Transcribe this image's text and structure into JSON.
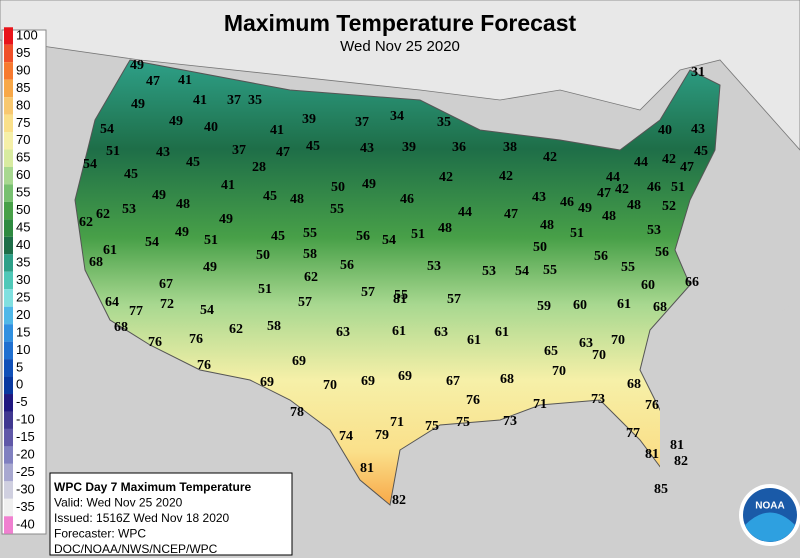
{
  "title": "Maximum Temperature Forecast",
  "subtitle": "Wed Nov 25 2020",
  "legend": [
    {
      "value": 100,
      "color": "#e8141a"
    },
    {
      "value": 95,
      "color": "#f0502a"
    },
    {
      "value": 90,
      "color": "#f77a30"
    },
    {
      "value": 85,
      "color": "#f8a848"
    },
    {
      "value": 80,
      "color": "#f8c870"
    },
    {
      "value": 75,
      "color": "#fae08a"
    },
    {
      "value": 70,
      "color": "#f6f0a8"
    },
    {
      "value": 65,
      "color": "#d8eba0"
    },
    {
      "value": 60,
      "color": "#a8d890"
    },
    {
      "value": 55,
      "color": "#78c070"
    },
    {
      "value": 50,
      "color": "#48a048"
    },
    {
      "value": 45,
      "color": "#2e8a40"
    },
    {
      "value": 40,
      "color": "#1e6e48"
    },
    {
      "value": 35,
      "color": "#2ea088"
    },
    {
      "value": 30,
      "color": "#50c8b8"
    },
    {
      "value": 25,
      "color": "#80e0e0"
    },
    {
      "value": 20,
      "color": "#50b8e8"
    },
    {
      "value": 15,
      "color": "#3090e0"
    },
    {
      "value": 10,
      "color": "#2070d0"
    },
    {
      "value": 5,
      "color": "#1050b8"
    },
    {
      "value": 0,
      "color": "#0838a0"
    },
    {
      "value": -5,
      "color": "#201880"
    },
    {
      "value": -10,
      "color": "#403890"
    },
    {
      "value": -15,
      "color": "#6058a8"
    },
    {
      "value": -20,
      "color": "#8080c0"
    },
    {
      "value": -25,
      "color": "#a8a8d0"
    },
    {
      "value": -30,
      "color": "#d0d0e0"
    },
    {
      "value": -35,
      "color": "#f0f0f0"
    },
    {
      "value": -40,
      "color": "#f080d0"
    }
  ],
  "temps": [
    49,
    47,
    41,
    49,
    41,
    37,
    35,
    54,
    49,
    40,
    41,
    39,
    37,
    34,
    35,
    51,
    43,
    45,
    37,
    28,
    47,
    45,
    43,
    39,
    36,
    38,
    42,
    40,
    43,
    31,
    54,
    45,
    41,
    42,
    42,
    44,
    42,
    47,
    45,
    44,
    50,
    49,
    46,
    43,
    46,
    49,
    47,
    42,
    46,
    51,
    49,
    48,
    45,
    48,
    53,
    62,
    62,
    55,
    44,
    47,
    48,
    48,
    48,
    52,
    49,
    61,
    54,
    49,
    51,
    45,
    55,
    56,
    54,
    51,
    48,
    58,
    50,
    50,
    51,
    53,
    56,
    68,
    49,
    56,
    53,
    53,
    54,
    55,
    56,
    55,
    67,
    62,
    51,
    57,
    55,
    57,
    60,
    66,
    64,
    77,
    72,
    54,
    57,
    59,
    60,
    61,
    68,
    68,
    58,
    62,
    63,
    61,
    63,
    61,
    61,
    76,
    76,
    69,
    70,
    63,
    65,
    70,
    76,
    69,
    70,
    69,
    70,
    69,
    67,
    68,
    68,
    76,
    71,
    73,
    76,
    78,
    71,
    75,
    75,
    73,
    74,
    79,
    77,
    81,
    81,
    82,
    81,
    82,
    85,
    81
  ],
  "info": [
    "WPC Day 7 Maximum Temperature",
    "Valid: Wed Nov 25 2020",
    "Issued: 1516Z Wed Nov 18 2020",
    "Forecaster: WPC",
    "DOC/NOAA/NWS/NCEP/WPC"
  ],
  "logo": "NOAA"
}
